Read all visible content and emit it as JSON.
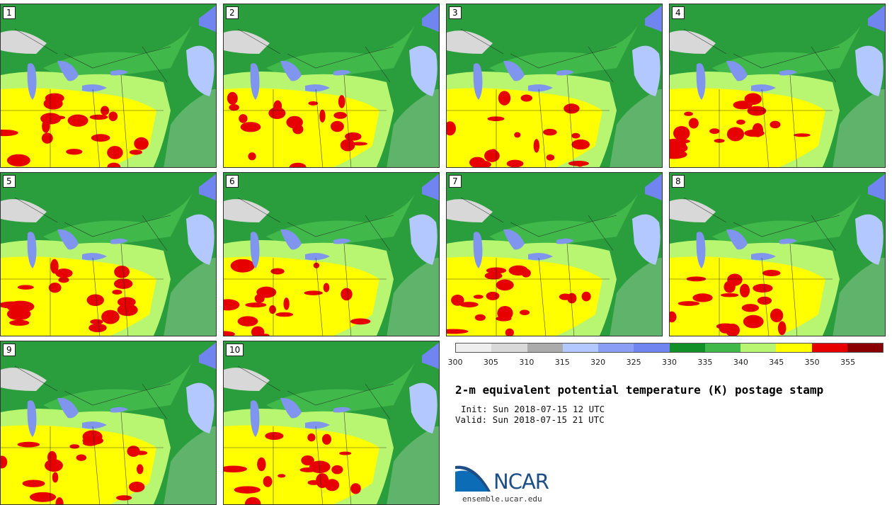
{
  "panels": [
    {
      "label": "1"
    },
    {
      "label": "2"
    },
    {
      "label": "3"
    },
    {
      "label": "4"
    },
    {
      "label": "5"
    },
    {
      "label": "6"
    },
    {
      "label": "7"
    },
    {
      "label": "8"
    },
    {
      "label": "9"
    },
    {
      "label": "10"
    }
  ],
  "colorbar": {
    "ticks": [
      "300",
      "305",
      "310",
      "315",
      "320",
      "325",
      "330",
      "335",
      "340",
      "345",
      "350",
      "355"
    ],
    "colors": [
      "#eeeeee",
      "#d9d9d9",
      "#ababab",
      "#b3c8ff",
      "#8a9ef5",
      "#7185f0",
      "#129028",
      "#40b84a",
      "#b8f570",
      "#ffff00",
      "#e60000",
      "#8a0000"
    ]
  },
  "map_colors": {
    "ocean": "#5fb36a",
    "land_green": "#2a9e3c",
    "light_green": "#b8f570",
    "yellow": "#ffff00",
    "red": "#e60000",
    "lake": "#7f95ee",
    "ice": "#d8d8d8"
  },
  "title": "2-m equivalent potential temperature (K) postage stamp",
  "init_line": "Init: Sun 2018-07-15 12 UTC",
  "valid_line": "Valid: Sun 2018-07-15 21 UTC",
  "logo_text": "NCAR",
  "site": "ensemble.ucar.edu"
}
